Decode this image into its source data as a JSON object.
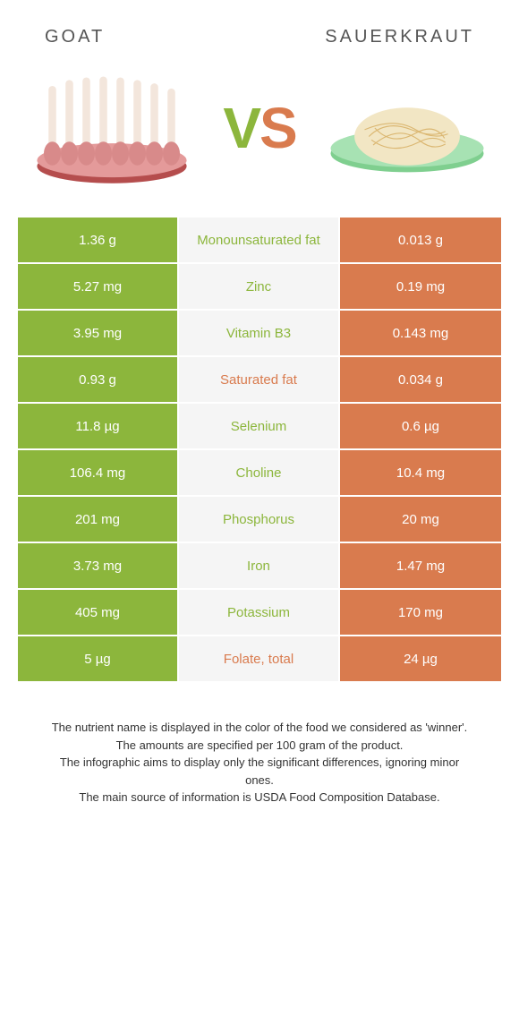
{
  "header": {
    "left_title": "GOAT",
    "right_title": "SAUERKRAUT",
    "vs_v": "V",
    "vs_s": "S"
  },
  "colors": {
    "goat": "#8cb63c",
    "sauerkraut": "#d97b4e",
    "mid_bg": "#f5f5f5",
    "page_bg": "#ffffff"
  },
  "rows": [
    {
      "label": "Monounsaturated fat",
      "goat": "1.36 g",
      "kraut": "0.013 g",
      "winner": "goat"
    },
    {
      "label": "Zinc",
      "goat": "5.27 mg",
      "kraut": "0.19 mg",
      "winner": "goat"
    },
    {
      "label": "Vitamin B3",
      "goat": "3.95 mg",
      "kraut": "0.143 mg",
      "winner": "goat"
    },
    {
      "label": "Saturated fat",
      "goat": "0.93 g",
      "kraut": "0.034 g",
      "winner": "kraut"
    },
    {
      "label": "Selenium",
      "goat": "11.8 µg",
      "kraut": "0.6 µg",
      "winner": "goat"
    },
    {
      "label": "Choline",
      "goat": "106.4 mg",
      "kraut": "10.4 mg",
      "winner": "goat"
    },
    {
      "label": "Phosphorus",
      "goat": "201 mg",
      "kraut": "20 mg",
      "winner": "goat"
    },
    {
      "label": "Iron",
      "goat": "3.73 mg",
      "kraut": "1.47 mg",
      "winner": "goat"
    },
    {
      "label": "Potassium",
      "goat": "405 mg",
      "kraut": "170 mg",
      "winner": "goat"
    },
    {
      "label": "Folate, total",
      "goat": "5 µg",
      "kraut": "24 µg",
      "winner": "kraut"
    }
  ],
  "footer": {
    "line1": "The nutrient name is displayed in the color of the food we considered as 'winner'.",
    "line2": "The amounts are specified per 100 gram of the product.",
    "line3": "The infographic aims to display only the significant differences, ignoring minor ones.",
    "line4": "The main source of information is USDA Food Composition Database."
  }
}
